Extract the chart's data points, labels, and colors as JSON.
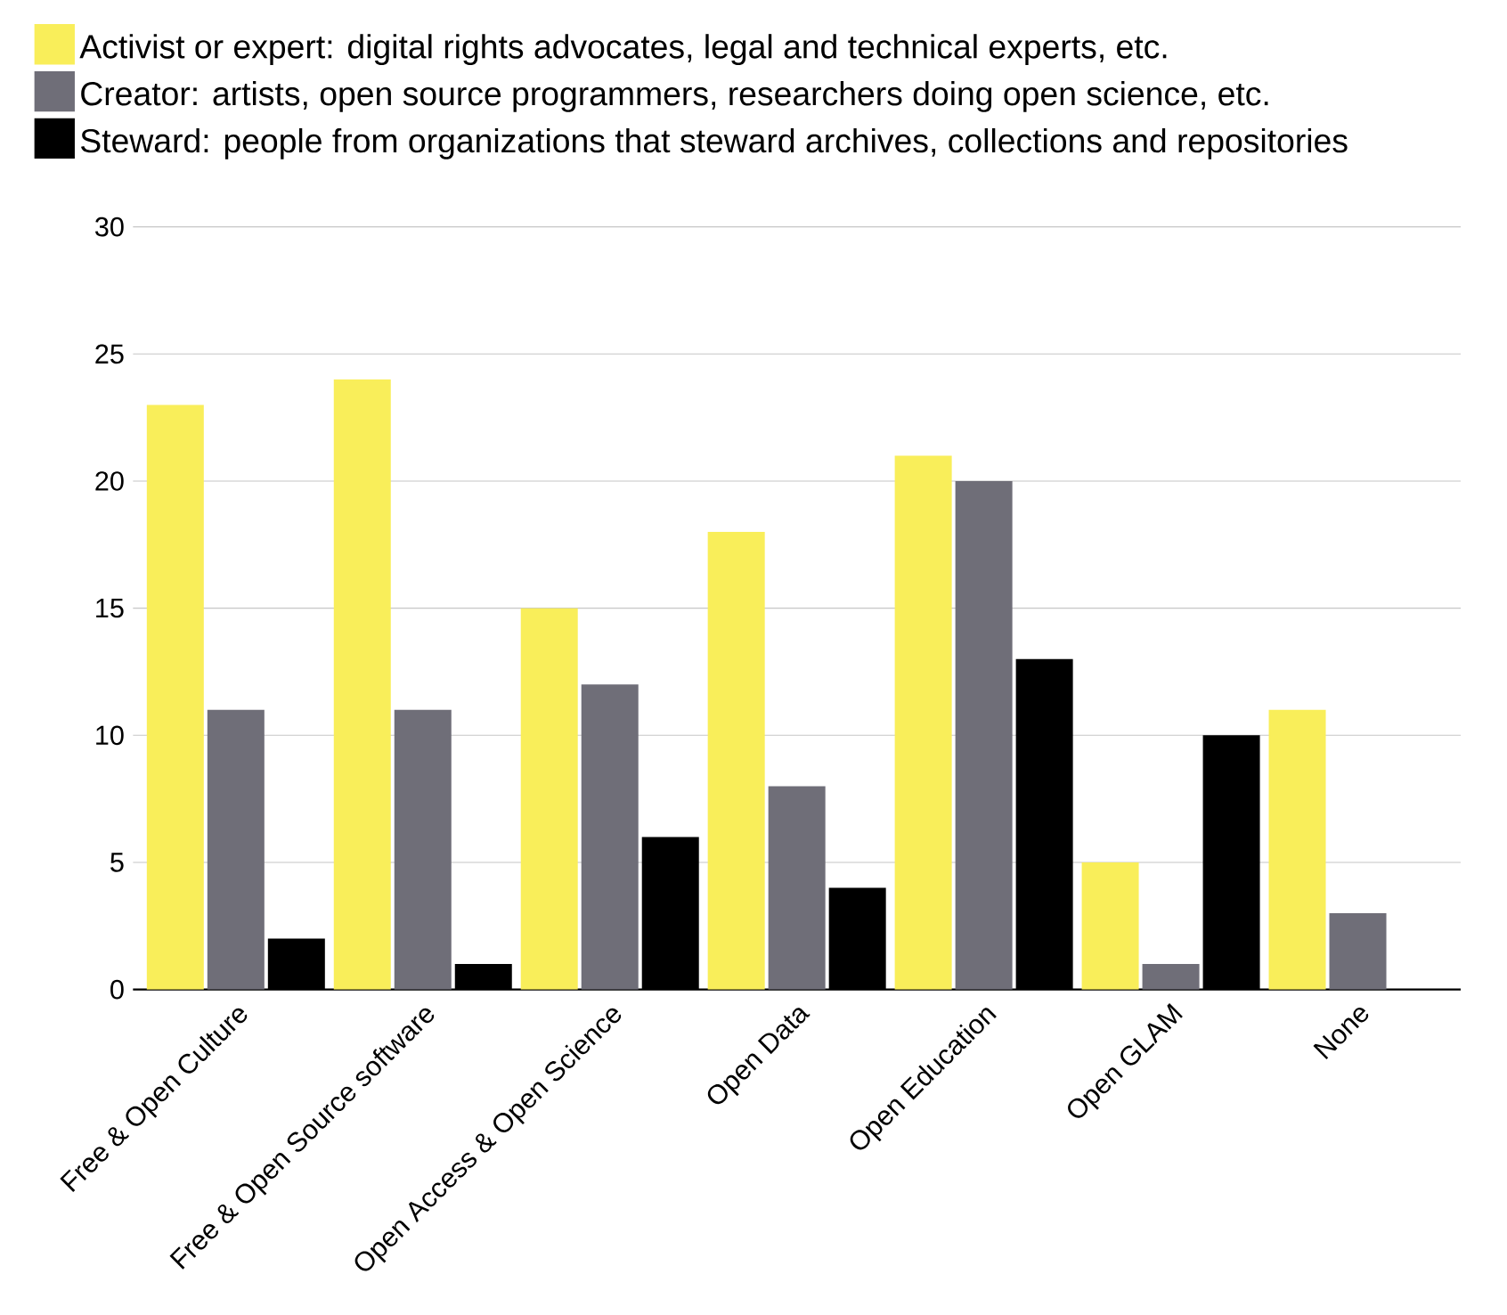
{
  "chart_data": {
    "type": "bar",
    "categories": [
      "Free & Open Culture",
      "Free & Open Source software",
      "Open Access & Open Science",
      "Open Data",
      "Open Education",
      "Open GLAM",
      "None"
    ],
    "series": [
      {
        "name": "Activist or expert: digital rights advocates, legal and technical experts, etc.",
        "color": "#f9ee5a",
        "values": [
          23,
          24,
          15,
          18,
          21,
          5,
          11
        ]
      },
      {
        "name": "Creator: artists, open source programmers, researchers doing open science, etc.",
        "color": "#6f6e78",
        "values": [
          11,
          11,
          12,
          8,
          20,
          1,
          3
        ]
      },
      {
        "name": "Steward: people from organizations that steward archives, collections and repositories",
        "color": "#000000",
        "values": [
          2,
          1,
          6,
          4,
          13,
          10,
          0
        ]
      }
    ],
    "ylim": [
      0,
      30
    ],
    "yticks": [
      0,
      5,
      10,
      15,
      20,
      25,
      30
    ],
    "grid": "y",
    "legend": "top"
  }
}
